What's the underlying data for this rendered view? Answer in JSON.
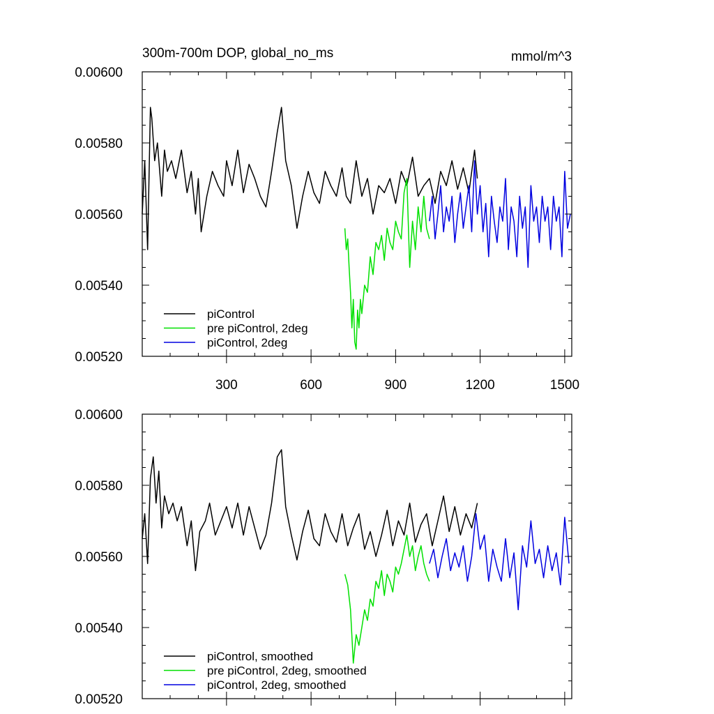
{
  "figure": {
    "title_left": "300m-700m DOP, global_no_ms",
    "title_right": "mmol/m^3"
  },
  "chart_data": [
    {
      "type": "line",
      "title": "300m-700m DOP, global_no_ms",
      "units": "mmol/m^3",
      "xlabel": "",
      "ylabel": "",
      "xlim": [
        1,
        1525
      ],
      "ylim": [
        0.0052,
        0.006
      ],
      "x_ticks": [
        300,
        600,
        900,
        1200,
        1500
      ],
      "x_tick_labels": [
        "300",
        "600",
        "900",
        "1200",
        "1500"
      ],
      "y_ticks": [
        0.0052,
        0.0054,
        0.0056,
        0.0058,
        0.006
      ],
      "y_tick_labels": [
        "0.00520",
        "0.00540",
        "0.00560",
        "0.00580",
        "0.00600"
      ],
      "legend_position": "bottom-left",
      "grid": false,
      "series": [
        {
          "name": "piControl",
          "color": "#000000",
          "x": [
            1,
            10,
            20,
            30,
            35,
            45,
            55,
            70,
            80,
            90,
            105,
            120,
            140,
            160,
            175,
            190,
            200,
            210,
            230,
            250,
            270,
            290,
            300,
            320,
            340,
            360,
            380,
            400,
            420,
            440,
            460,
            480,
            495,
            510,
            530,
            550,
            570,
            590,
            610,
            630,
            650,
            670,
            690,
            710,
            725,
            740,
            760,
            780,
            800,
            820,
            840,
            860,
            880,
            900,
            920,
            940,
            960,
            980,
            1000,
            1020,
            1040,
            1060,
            1080,
            1100,
            1120,
            1140,
            1160,
            1180,
            1190
          ],
          "y": [
            0.0056,
            0.00575,
            0.0055,
            0.0059,
            0.00587,
            0.00575,
            0.0058,
            0.00565,
            0.00578,
            0.00572,
            0.00575,
            0.0057,
            0.00578,
            0.00566,
            0.00572,
            0.0056,
            0.0057,
            0.00555,
            0.00565,
            0.00572,
            0.00568,
            0.00565,
            0.00575,
            0.00568,
            0.00578,
            0.00566,
            0.00574,
            0.0057,
            0.00565,
            0.00562,
            0.00572,
            0.00583,
            0.0059,
            0.00575,
            0.00568,
            0.00556,
            0.00565,
            0.00572,
            0.00566,
            0.00563,
            0.00572,
            0.00568,
            0.00565,
            0.00573,
            0.00565,
            0.00563,
            0.00575,
            0.00565,
            0.0057,
            0.0056,
            0.00568,
            0.00566,
            0.0057,
            0.00563,
            0.00572,
            0.00568,
            0.00576,
            0.00565,
            0.00568,
            0.0057,
            0.00563,
            0.00572,
            0.00568,
            0.00575,
            0.00567,
            0.00573,
            0.00566,
            0.00578,
            0.0057
          ]
        },
        {
          "name": "pre piControl, 2deg",
          "color": "#00e000",
          "x": [
            720,
            725,
            730,
            735,
            740,
            745,
            750,
            755,
            760,
            765,
            770,
            775,
            780,
            790,
            800,
            810,
            820,
            830,
            840,
            850,
            860,
            870,
            880,
            890,
            900,
            910,
            920,
            930,
            940,
            950,
            960,
            970,
            980,
            990,
            1000,
            1010,
            1020
          ],
          "y": [
            0.00556,
            0.0055,
            0.00553,
            0.00545,
            0.00538,
            0.00528,
            0.00536,
            0.00524,
            0.00522,
            0.00533,
            0.00528,
            0.00536,
            0.00532,
            0.0054,
            0.00538,
            0.00548,
            0.00543,
            0.00552,
            0.0055,
            0.00554,
            0.00547,
            0.00556,
            0.00552,
            0.0055,
            0.00558,
            0.00555,
            0.00553,
            0.00566,
            0.0057,
            0.00545,
            0.00558,
            0.0055,
            0.00562,
            0.00555,
            0.00565,
            0.00556,
            0.00553
          ]
        },
        {
          "name": "piControl, 2deg",
          "color": "#0000e0",
          "x": [
            1020,
            1030,
            1040,
            1050,
            1060,
            1070,
            1080,
            1090,
            1100,
            1110,
            1120,
            1130,
            1140,
            1150,
            1160,
            1170,
            1180,
            1190,
            1200,
            1210,
            1220,
            1230,
            1240,
            1250,
            1260,
            1270,
            1280,
            1290,
            1300,
            1310,
            1320,
            1330,
            1340,
            1350,
            1360,
            1370,
            1380,
            1390,
            1400,
            1410,
            1420,
            1430,
            1440,
            1450,
            1460,
            1470,
            1480,
            1490,
            1500,
            1510,
            1520
          ],
          "y": [
            0.00558,
            0.00565,
            0.00553,
            0.0056,
            0.00568,
            0.00555,
            0.00562,
            0.00558,
            0.00565,
            0.00552,
            0.0056,
            0.00566,
            0.00556,
            0.00562,
            0.00568,
            0.00555,
            0.00575,
            0.0056,
            0.00568,
            0.00555,
            0.00563,
            0.00548,
            0.00565,
            0.00558,
            0.00552,
            0.00562,
            0.00558,
            0.0057,
            0.0055,
            0.00562,
            0.00558,
            0.00548,
            0.00565,
            0.00556,
            0.00562,
            0.00545,
            0.00568,
            0.00558,
            0.00562,
            0.00552,
            0.00565,
            0.00558,
            0.00562,
            0.0055,
            0.00565,
            0.00558,
            0.00562,
            0.00548,
            0.00572,
            0.00556,
            0.0056
          ]
        }
      ]
    },
    {
      "type": "line",
      "title": "",
      "xlabel": "",
      "ylabel": "",
      "xlim": [
        1,
        1525
      ],
      "ylim": [
        0.0052,
        0.006
      ],
      "x_ticks": [
        300,
        600,
        900,
        1200,
        1500
      ],
      "y_ticks": [
        0.0052,
        0.0054,
        0.0056,
        0.0058,
        0.006
      ],
      "y_tick_labels": [
        "0.00520",
        "0.00540",
        "0.00560",
        "0.00580",
        "0.00600"
      ],
      "legend_position": "bottom-left",
      "grid": false,
      "series": [
        {
          "name": "piControl, smoothed",
          "color": "#000000",
          "x": [
            1,
            10,
            20,
            30,
            40,
            50,
            60,
            70,
            80,
            95,
            110,
            125,
            140,
            160,
            175,
            190,
            205,
            225,
            240,
            260,
            280,
            300,
            320,
            340,
            360,
            380,
            400,
            420,
            440,
            460,
            480,
            495,
            510,
            530,
            550,
            570,
            590,
            610,
            630,
            650,
            670,
            690,
            710,
            730,
            750,
            770,
            790,
            810,
            830,
            850,
            870,
            890,
            910,
            930,
            950,
            970,
            990,
            1010,
            1030,
            1050,
            1070,
            1090,
            1110,
            1130,
            1150,
            1170,
            1190
          ],
          "y": [
            0.00565,
            0.00572,
            0.00558,
            0.00582,
            0.00588,
            0.00575,
            0.00584,
            0.00568,
            0.00577,
            0.00572,
            0.00575,
            0.0057,
            0.00574,
            0.00563,
            0.0057,
            0.00556,
            0.00567,
            0.0057,
            0.00575,
            0.00566,
            0.0057,
            0.00574,
            0.00568,
            0.00575,
            0.00566,
            0.00574,
            0.00568,
            0.00562,
            0.00566,
            0.00575,
            0.00588,
            0.0059,
            0.00574,
            0.00566,
            0.00559,
            0.00567,
            0.00573,
            0.00565,
            0.00563,
            0.00572,
            0.00567,
            0.00564,
            0.00572,
            0.00563,
            0.00568,
            0.00572,
            0.00562,
            0.00567,
            0.0056,
            0.00566,
            0.00573,
            0.00563,
            0.0057,
            0.00566,
            0.00575,
            0.00564,
            0.00569,
            0.00572,
            0.00563,
            0.0057,
            0.00577,
            0.00567,
            0.00574,
            0.00566,
            0.00572,
            0.00568,
            0.00575
          ]
        },
        {
          "name": "pre piControl, 2deg, smoothed",
          "color": "#00e000",
          "x": [
            720,
            730,
            740,
            750,
            760,
            770,
            780,
            790,
            800,
            810,
            820,
            830,
            840,
            850,
            860,
            870,
            880,
            890,
            900,
            910,
            920,
            930,
            940,
            950,
            960,
            970,
            980,
            990,
            1000,
            1010,
            1020
          ],
          "y": [
            0.00555,
            0.00552,
            0.00545,
            0.0053,
            0.00538,
            0.00535,
            0.0054,
            0.00545,
            0.00542,
            0.00548,
            0.00546,
            0.00553,
            0.00551,
            0.00556,
            0.00549,
            0.00555,
            0.00553,
            0.0055,
            0.00557,
            0.00555,
            0.00558,
            0.00562,
            0.00566,
            0.0056,
            0.00563,
            0.00556,
            0.0056,
            0.00563,
            0.00558,
            0.00555,
            0.00553
          ]
        },
        {
          "name": "piControl, 2deg, smoothed",
          "color": "#0000e0",
          "x": [
            1020,
            1035,
            1050,
            1065,
            1080,
            1095,
            1110,
            1125,
            1140,
            1155,
            1170,
            1185,
            1200,
            1215,
            1230,
            1245,
            1260,
            1275,
            1290,
            1305,
            1320,
            1335,
            1350,
            1365,
            1380,
            1395,
            1410,
            1425,
            1440,
            1455,
            1470,
            1485,
            1500,
            1515
          ],
          "y": [
            0.00558,
            0.00562,
            0.00554,
            0.0056,
            0.00565,
            0.00556,
            0.00561,
            0.00557,
            0.00563,
            0.00553,
            0.0056,
            0.00572,
            0.00562,
            0.00566,
            0.00553,
            0.00562,
            0.00557,
            0.00553,
            0.00565,
            0.00554,
            0.00561,
            0.00545,
            0.00563,
            0.00557,
            0.0057,
            0.00558,
            0.00562,
            0.00554,
            0.00563,
            0.00556,
            0.00561,
            0.00552,
            0.00571,
            0.00558
          ]
        }
      ]
    }
  ]
}
